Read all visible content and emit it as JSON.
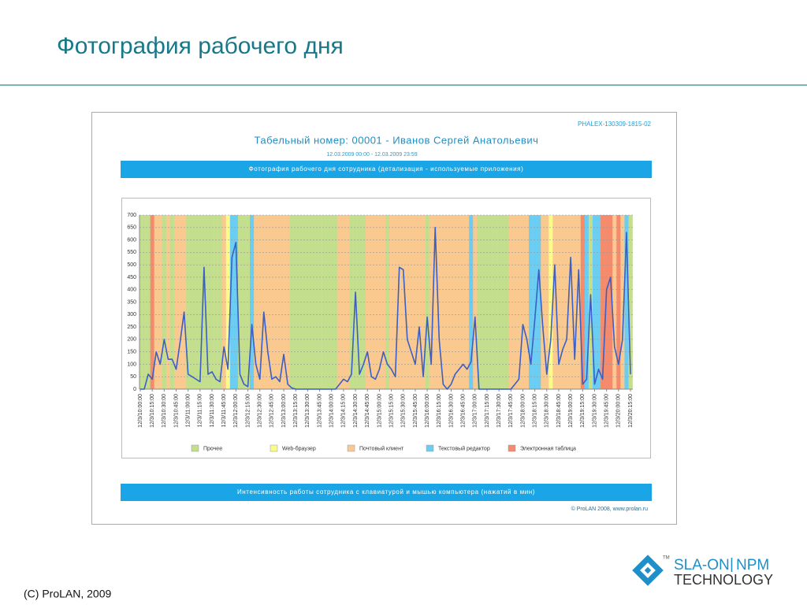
{
  "slide": {
    "title": "Фотография рабочего дня",
    "footer": "(C) ProLAN, 2009",
    "logo": {
      "brand": "SLA-ON",
      "separator": "|",
      "product": "NPM",
      "tm": "TM",
      "tagline": "TECHNOLOGY"
    }
  },
  "report": {
    "code": "PHALEX-130309-1815-02",
    "employee": "Табельный номер: 00001 - Иванов Сергей Анатольевич",
    "period": "12.03.2009 00:00 - 12.03.2009 23:59",
    "top_bar": "Фотография рабочего дня сотрудника (детализация - используемые приложения)",
    "bottom_bar": "Интенсивность работы сотрудника с клавиатурой и мышью компьютера (нажатий в мин)",
    "copyright": "© ProLAN 2008, www.prolan.ru"
  },
  "chart_data": {
    "type": "line",
    "ylim": [
      0,
      700
    ],
    "yticks": [
      0,
      50,
      100,
      150,
      200,
      250,
      300,
      350,
      400,
      450,
      500,
      550,
      600,
      650,
      700
    ],
    "grid": true,
    "categories": [
      "12/3/10:00:00",
      null,
      null,
      "12/3/10:15:00",
      null,
      null,
      "12/3/10:30:00",
      null,
      null,
      "12/3/10:45:00",
      null,
      null,
      "12/3/11:00:00",
      null,
      null,
      "12/3/11:15:00",
      null,
      null,
      "12/3/11:30:00",
      null,
      null,
      "12/3/11:45:00",
      null,
      null,
      "12/3/12:00:00",
      null,
      null,
      "12/3/12:15:00",
      null,
      null,
      "12/3/12:30:00",
      null,
      null,
      "12/3/12:45:00",
      null,
      null,
      "12/3/13:00:00",
      null,
      null,
      "12/3/13:15:00",
      null,
      null,
      "12/3/13:30:00",
      null,
      null,
      "12/3/13:45:00",
      null,
      null,
      "12/3/14:00:00",
      null,
      null,
      "12/3/14:15:00",
      null,
      null,
      "12/3/14:30:00",
      null,
      null,
      "12/3/14:45:00",
      null,
      null,
      "12/3/15:00:00",
      null,
      null,
      "12/3/15:15:00",
      null,
      null,
      "12/3/15:30:00",
      null,
      null,
      "12/3/15:45:00",
      null,
      null,
      "12/3/16:00:00",
      null,
      null,
      "12/3/16:15:00",
      null,
      null,
      "12/3/16:30:00",
      null,
      null,
      "12/3/16:45:00",
      null,
      null,
      "12/3/17:00:00",
      null,
      null,
      "12/3/17:15:00",
      null,
      null,
      "12/3/17:30:00",
      null,
      null,
      "12/3/17:45:00",
      null,
      null,
      "12/3/18:00:00",
      null,
      null,
      "12/3/18:15:00",
      null,
      null,
      "12/3/18:30:00",
      null,
      null,
      "12/3/18:45:00",
      null,
      null,
      "12/3/19:00:00",
      null,
      null,
      "12/3/19:15:00",
      null,
      null,
      "12/3/19:30:00",
      null,
      null,
      "12/3/19:45:00",
      null,
      null,
      "12/3/20:00:00",
      null,
      null,
      "12/3/20:15:00"
    ],
    "series": [
      {
        "color": "#3b5fc4",
        "values": [
          0,
          0,
          60,
          40,
          150,
          100,
          200,
          120,
          120,
          80,
          190,
          310,
          60,
          50,
          40,
          30,
          490,
          60,
          70,
          40,
          30,
          170,
          80,
          530,
          590,
          60,
          20,
          10,
          260,
          100,
          40,
          310,
          150,
          40,
          50,
          30,
          140,
          20,
          5,
          0,
          0,
          0,
          0,
          0,
          0,
          0,
          0,
          0,
          0,
          0,
          20,
          40,
          30,
          60,
          390,
          60,
          100,
          150,
          50,
          40,
          80,
          150,
          100,
          80,
          50,
          490,
          480,
          200,
          150,
          100,
          250,
          50,
          290,
          100,
          650,
          200,
          20,
          0,
          20,
          60,
          80,
          100,
          80,
          110,
          290,
          0,
          0,
          0,
          0,
          0,
          0,
          0,
          0,
          0,
          20,
          40,
          260,
          200,
          100,
          280,
          480,
          250,
          60,
          200,
          500,
          100,
          160,
          200,
          530,
          120,
          480,
          20,
          40,
          380,
          20,
          80,
          40,
          400,
          450,
          170,
          100,
          200,
          630,
          60
        ]
      }
    ],
    "legend": [
      {
        "name": "Прочее",
        "color": "#c3df8e"
      },
      {
        "name": "Web-браузер",
        "color": "#fbfb8c"
      },
      {
        "name": "Почтовый клиент",
        "color": "#f9c98f"
      },
      {
        "name": "Текстовый редактор",
        "color": "#6ccdf3"
      },
      {
        "name": "Электронная таблица",
        "color": "#f38b6c"
      }
    ],
    "activity": [
      0,
      0,
      0,
      4,
      2,
      2,
      0,
      2,
      0,
      2,
      2,
      2,
      0,
      0,
      0,
      0,
      0,
      0,
      0,
      0,
      0,
      2,
      1,
      3,
      3,
      0,
      0,
      0,
      3,
      2,
      2,
      2,
      2,
      2,
      2,
      2,
      2,
      2,
      0,
      0,
      0,
      0,
      0,
      0,
      0,
      0,
      0,
      0,
      0,
      0,
      2,
      2,
      2,
      0,
      0,
      0,
      0,
      2,
      2,
      2,
      2,
      2,
      0,
      2,
      2,
      2,
      2,
      2,
      2,
      2,
      2,
      2,
      0,
      2,
      2,
      2,
      2,
      2,
      2,
      2,
      2,
      2,
      2,
      3,
      2,
      0,
      0,
      0,
      0,
      0,
      0,
      0,
      0,
      2,
      2,
      2,
      2,
      2,
      3,
      3,
      3,
      2,
      2,
      1,
      2,
      2,
      2,
      2,
      2,
      2,
      2,
      4,
      3,
      0,
      3,
      3,
      4,
      4,
      4,
      2,
      4,
      2,
      3,
      0
    ]
  }
}
